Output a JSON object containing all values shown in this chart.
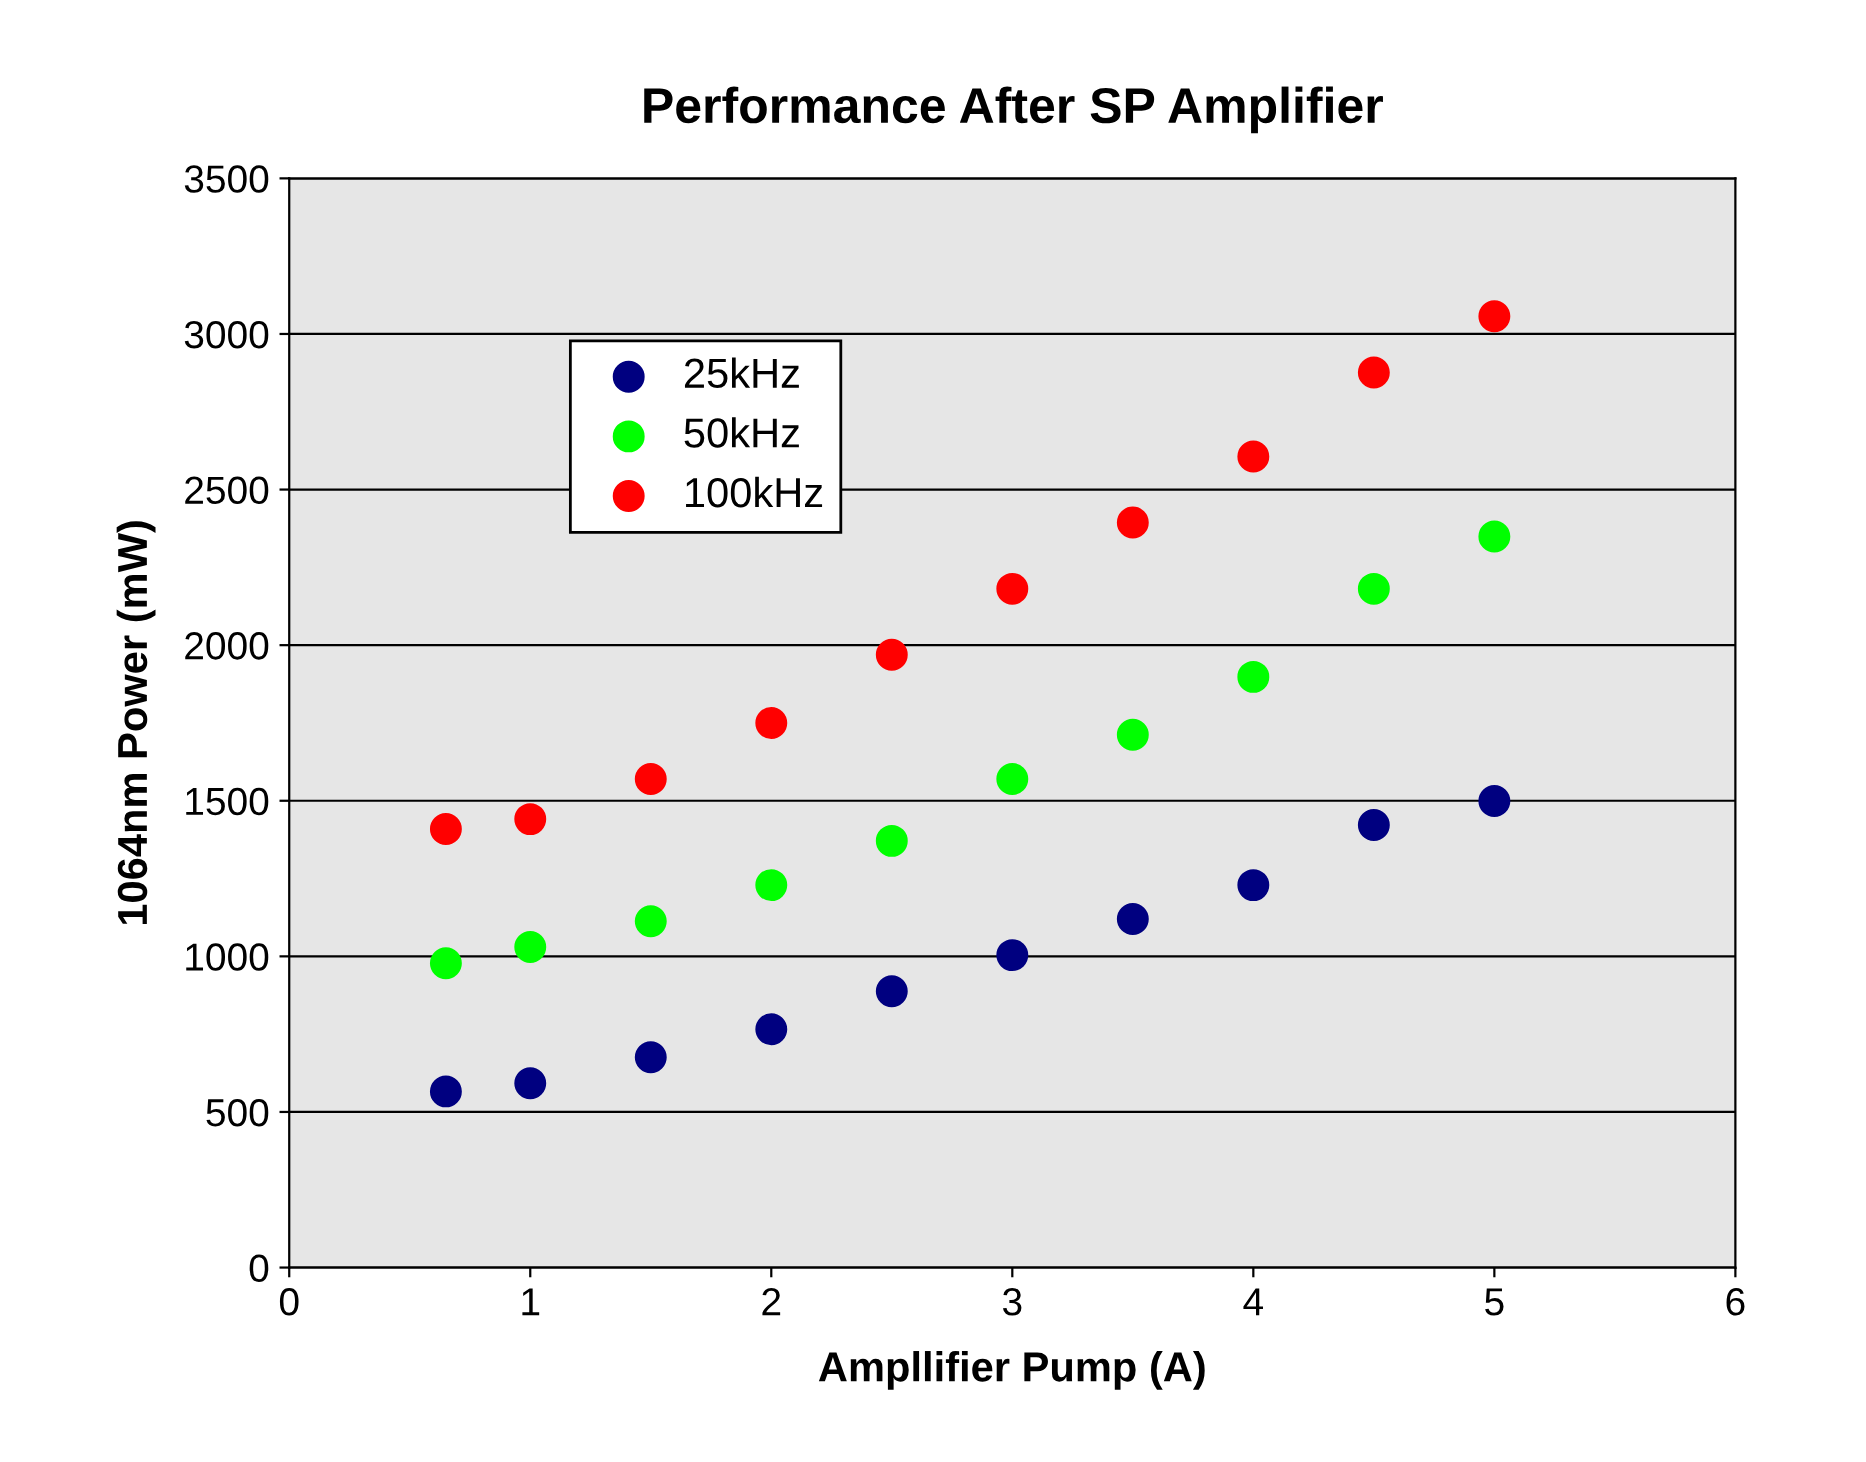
{
  "chart_data": {
    "type": "scatter",
    "title": "Performance After SP Amplifier",
    "xlabel": "Ampllifier Pump (A)",
    "ylabel": "1064nm Power (mW)",
    "x": [
      0.65,
      1,
      1.5,
      2,
      2.5,
      3,
      3.5,
      4,
      4.5,
      5
    ],
    "series": [
      {
        "name": "25kHz",
        "color": "#000080",
        "values": [
          566,
          592,
          676,
          766,
          888,
          1004,
          1120,
          1229,
          1422,
          1499
        ]
      },
      {
        "name": "50kHz",
        "color": "#00ff00",
        "values": [
          978,
          1030,
          1113,
          1229,
          1371,
          1570,
          1712,
          1898,
          2181,
          2349
        ]
      },
      {
        "name": "100kHz",
        "color": "#ff0000",
        "values": [
          1409,
          1441,
          1570,
          1750,
          1969,
          2181,
          2394,
          2606,
          2876,
          3057
        ]
      }
    ],
    "xlim": [
      0,
      6
    ],
    "xticks": [
      0,
      1,
      2,
      3,
      4,
      5,
      6
    ],
    "ylim": [
      0,
      3500
    ],
    "yticks": [
      0,
      500,
      1000,
      1500,
      2000,
      2500,
      3000,
      3500
    ],
    "grid": "y",
    "legend": "top left",
    "marker": "circle"
  }
}
